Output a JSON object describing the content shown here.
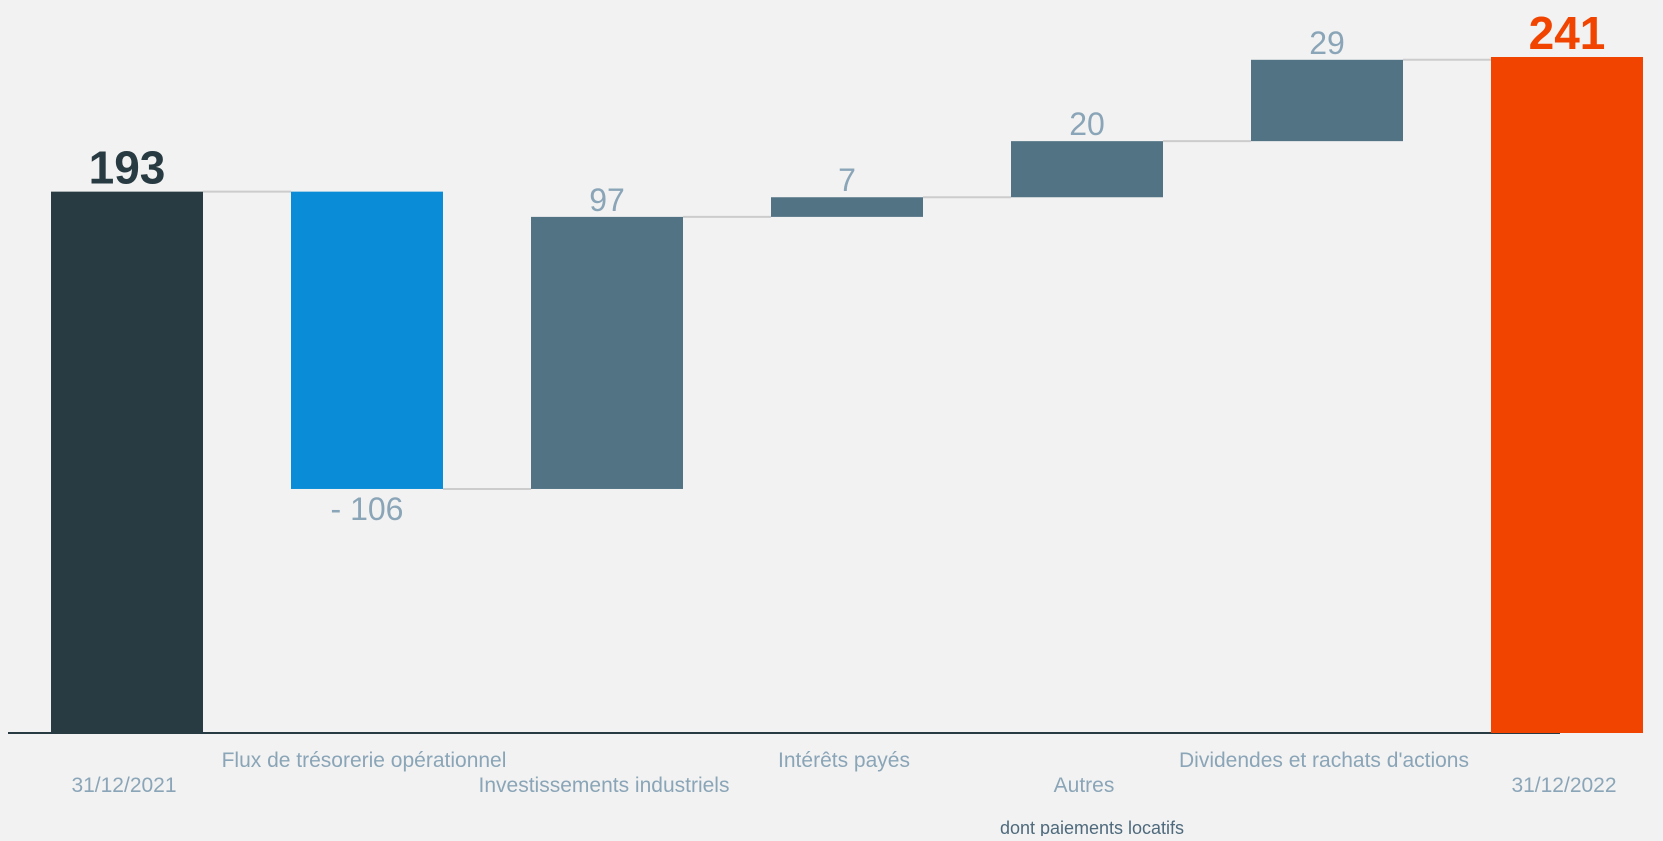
{
  "chart_data": {
    "type": "waterfall",
    "categories": [
      "31/12/2021",
      "Flux de trésorerie opérationnel",
      "Investissements industriels",
      "Intérêts payés",
      "Autres",
      "Dividendes et rachats d'actions",
      "31/12/2022"
    ],
    "value_labels": [
      "193",
      "- 106",
      "97",
      "7",
      "20",
      "29",
      "241"
    ],
    "bars": [
      {
        "kind": "total",
        "start": 0,
        "end": 193
      },
      {
        "kind": "decrease",
        "start": 193,
        "end": 87
      },
      {
        "kind": "increase",
        "start": 87,
        "end": 184
      },
      {
        "kind": "increase",
        "start": 184,
        "end": 191
      },
      {
        "kind": "increase",
        "start": 191,
        "end": 211
      },
      {
        "kind": "increase",
        "start": 211,
        "end": 240
      },
      {
        "kind": "total",
        "start": 0,
        "end": 241
      }
    ],
    "sub_label": "dont paiements locatifs",
    "ylim": [
      0,
      241
    ],
    "grid": false,
    "legend": "none",
    "colors": {
      "total_start": "#283a42",
      "decrease": "#0a8cd6",
      "increase": "#517384",
      "total_end": "#f24401",
      "value_label": "#8aa5b7",
      "category_label": "#8aa5b7",
      "sub_label": "#4e6a7c",
      "connector": "#cccccc",
      "axis": "#283a42"
    }
  }
}
